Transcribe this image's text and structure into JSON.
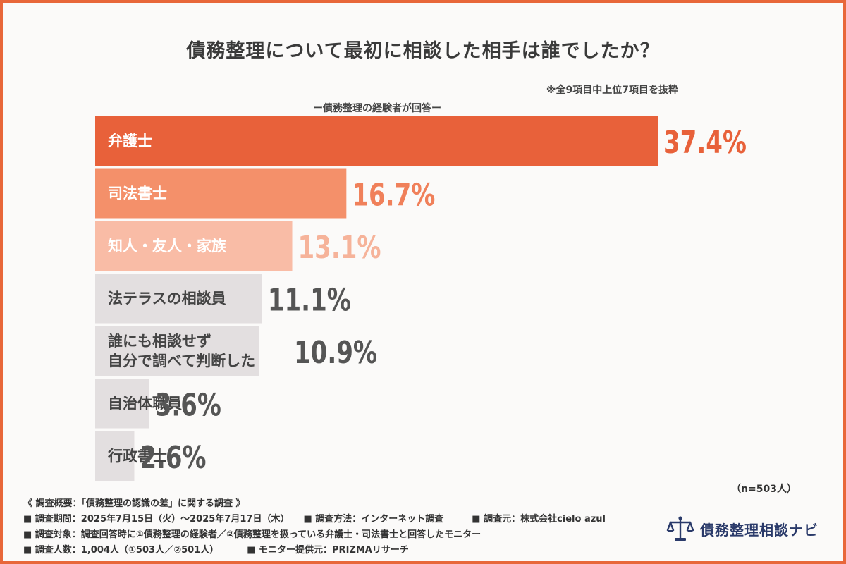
{
  "chart_data": {
    "type": "bar",
    "orientation": "horizontal",
    "title": "債務整理について最初に相談した相手は誰でしたか？",
    "note": "※全9項目中上位7項目を抜粋",
    "subtitle": "ー債務整理の経験者が回答ー",
    "categories": [
      "弁護士",
      "司法書士",
      "知人・友人・家族",
      "法テラスの相談員",
      "誰にも相談せず\n自分で調べて判断した",
      "自治体職員",
      "行政書士"
    ],
    "values": [
      37.4,
      16.7,
      13.1,
      11.1,
      10.9,
      3.6,
      2.6
    ],
    "value_labels": [
      "37.4%",
      "16.7%",
      "13.1%",
      "11.1%",
      "10.9%",
      "3.6%",
      "2.6%"
    ],
    "bar_colors": [
      "#e8613a",
      "#f4906a",
      "#f9bca6",
      "#e3dfe0",
      "#e3dfe0",
      "#e3dfe0",
      "#e3dfe0"
    ],
    "label_colors": [
      "#e8613a",
      "#f0805a",
      "#f6b39a",
      "#555555",
      "#555555",
      "#555555",
      "#555555"
    ],
    "category_text_colors": [
      "#ffffff",
      "#ffffff",
      "#ffffff",
      "#444444",
      "#444444",
      "#444444",
      "#444444"
    ],
    "xlim": [
      0,
      37.4
    ],
    "grid": false,
    "legend": "none"
  },
  "n_label": "（n=503人）",
  "footer": {
    "line1": "《 調査概要：「債務整理の認識の差」に関する調査 》",
    "line2a": "■ 調査期間：2025年7月15日（火）〜2025年7月17日（木）",
    "line2b": "■ 調査方法：インターネット調査",
    "line2c": "■ 調査元：株式会社cielo azul",
    "line3": "■ 調査対象：調査回答時に①債務整理の経験者／②債務整理を扱っている弁護士・司法書士と回答したモニター",
    "line4a": "■ 調査人数：1,004人（①503人／②501人）",
    "line4b": "■ モニター提供元：PRIZMAリサーチ"
  },
  "brand": {
    "name": "債務整理相談ナビ",
    "icon": "scales-icon",
    "color": "#2a3a6a"
  }
}
